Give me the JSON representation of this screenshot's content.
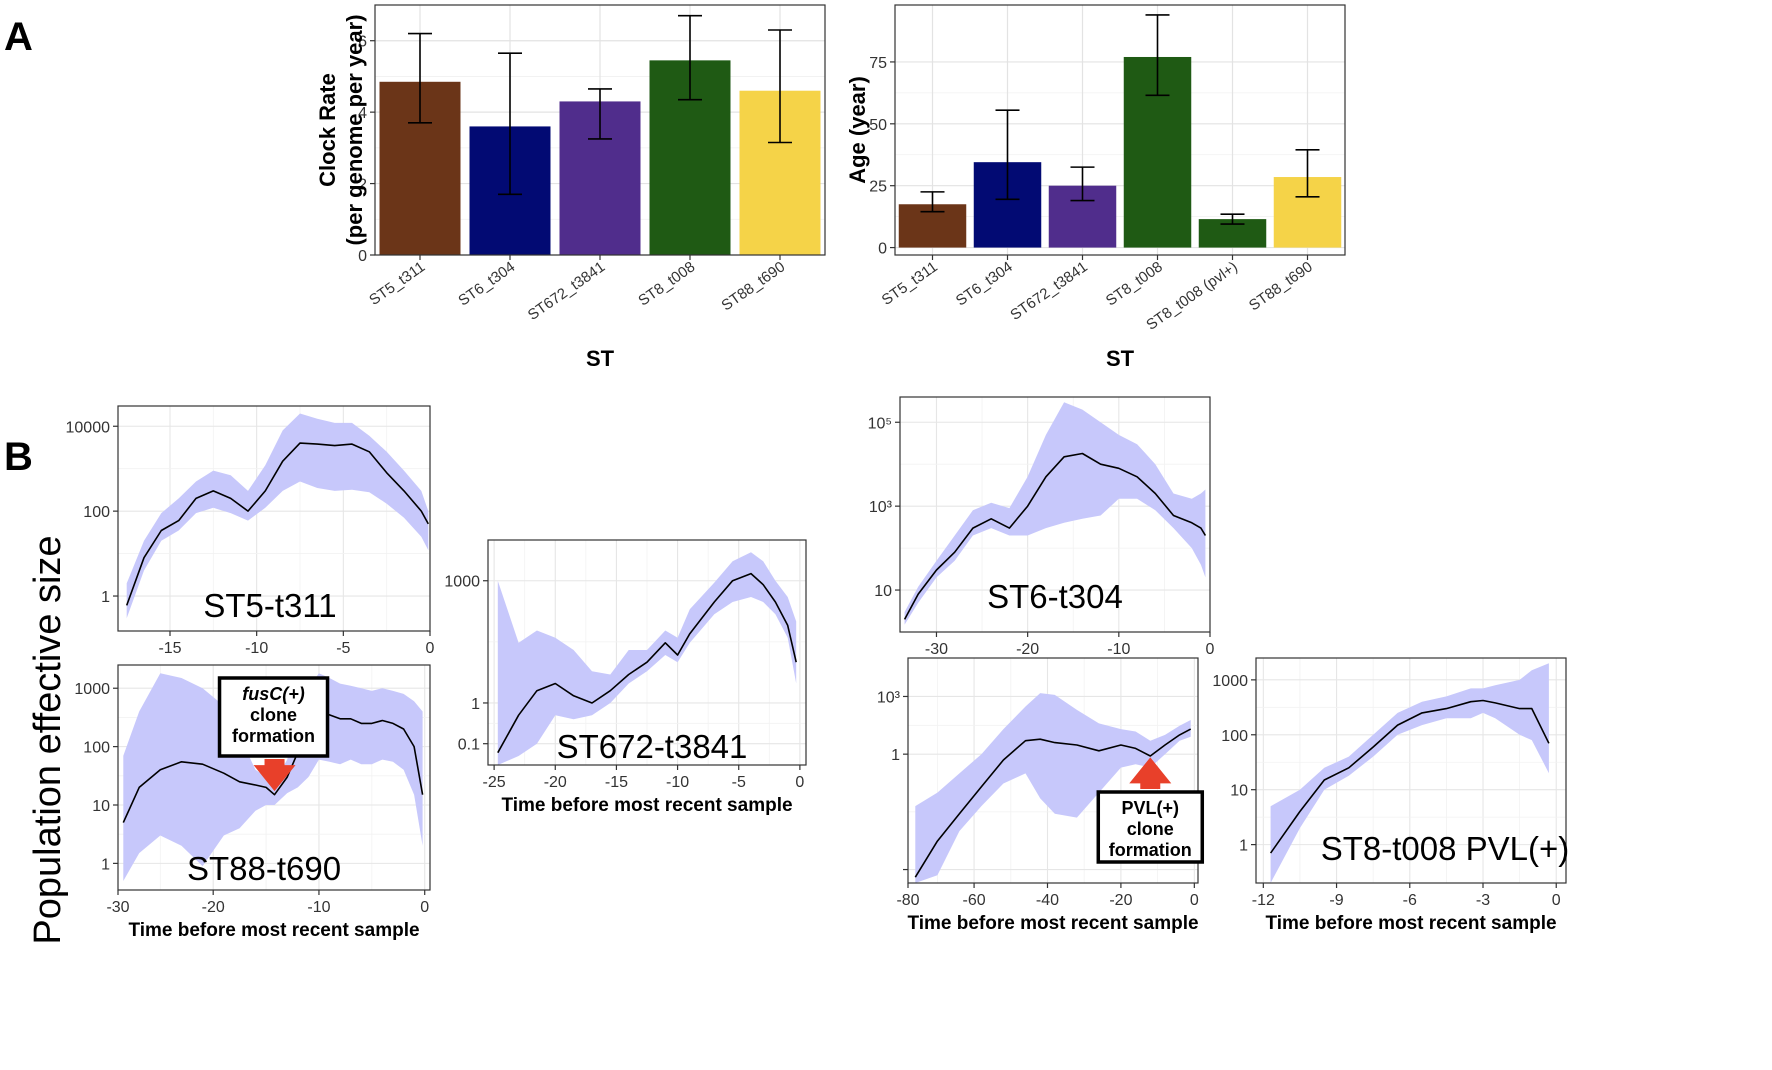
{
  "panels": {
    "a": "A",
    "b": "B"
  },
  "shared_ylabel": "Population effective size",
  "chart_data": [
    {
      "id": "clock",
      "type": "bar",
      "categories": [
        "ST5_t311",
        "ST6_t304",
        "ST672_t3841",
        "ST8_t008",
        "ST88_t690"
      ],
      "values": [
        4.85,
        3.6,
        4.3,
        5.45,
        4.6
      ],
      "err_low": [
        3.7,
        1.7,
        3.25,
        4.35,
        3.15
      ],
      "err_high": [
        6.2,
        5.65,
        4.65,
        6.7,
        6.3
      ],
      "colors": [
        "#6B3518",
        "#020A73",
        "#502D8C",
        "#1F5A14",
        "#F5D348"
      ],
      "ylabel_lines": [
        "Clock Rate",
        "(per genome per year)"
      ],
      "xlabel": "ST",
      "ylim": [
        0,
        7
      ],
      "yticks": [
        0,
        2,
        4,
        6
      ],
      "grid": true
    },
    {
      "id": "age",
      "type": "bar",
      "categories": [
        "ST5_t311",
        "ST6_t304",
        "ST672_t3841",
        "ST8_t008",
        "ST8_t008 (pvl+)",
        "ST88_t690"
      ],
      "values": [
        17.5,
        34.5,
        25,
        77,
        11.5,
        28.5
      ],
      "err_low": [
        14.5,
        19.5,
        19,
        61.5,
        9.5,
        20.5
      ],
      "err_high": [
        22.5,
        55.5,
        32.5,
        94,
        13.5,
        39.5
      ],
      "colors": [
        "#6B3518",
        "#020A73",
        "#502D8C",
        "#1F5A14",
        "#1F5A14",
        "#F5D348"
      ],
      "ylabel_lines": [
        "Age (year)"
      ],
      "xlabel": "ST",
      "ylim": [
        -3,
        98
      ],
      "yticks": [
        0,
        25,
        50,
        75
      ],
      "grid": true
    },
    {
      "id": "st5",
      "type": "area",
      "title": "ST5-t311",
      "xlabel": "",
      "ylabel": "",
      "log_y": true,
      "xlim": [
        -18,
        0
      ],
      "xticks": [
        -15,
        -10,
        -5,
        0
      ],
      "xtick_labels": [
        "-15",
        "-10",
        "-5",
        "0"
      ],
      "ylim": [
        0.15,
        30000
      ],
      "yticks": [
        1,
        100,
        10000
      ],
      "ytick_labels": [
        "1",
        "100",
        "10000"
      ],
      "x": [
        -17.5,
        -16.5,
        -15.5,
        -14.5,
        -13.5,
        -12.5,
        -11.5,
        -10.5,
        -9.5,
        -8.5,
        -7.5,
        -6.5,
        -5.5,
        -4.5,
        -3.5,
        -2.5,
        -1.5,
        -0.5,
        -0.1
      ],
      "y": [
        0.6,
        8,
        35,
        60,
        200,
        300,
        200,
        100,
        300,
        1500,
        4000,
        3800,
        3500,
        3800,
        2500,
        800,
        300,
        100,
        50
      ],
      "lower": [
        0.3,
        4,
        20,
        35,
        90,
        120,
        90,
        60,
        120,
        300,
        500,
        350,
        300,
        320,
        280,
        150,
        70,
        25,
        12
      ],
      "upper": [
        2,
        20,
        90,
        200,
        500,
        900,
        700,
        300,
        1200,
        8000,
        20000,
        15000,
        12000,
        12000,
        6000,
        2500,
        900,
        300,
        100
      ],
      "grid": true
    },
    {
      "id": "st88",
      "type": "area",
      "title": "ST88-t690",
      "xlabel": "Time before most recent sample",
      "ylabel": "",
      "log_y": true,
      "xlim": [
        -29,
        0.5
      ],
      "xticks": [
        -30,
        -20,
        -10,
        0
      ],
      "xtick_labels": [
        "-30",
        "-20",
        "-10",
        "0"
      ],
      "ylim": [
        0.35,
        2500
      ],
      "yticks": [
        1,
        10,
        100,
        1000
      ],
      "ytick_labels": [
        "1",
        "10",
        "100",
        "1000"
      ],
      "x": [
        -28.5,
        -27,
        -25,
        -23,
        -21,
        -19,
        -17.5,
        -16,
        -15,
        -14.2,
        -13,
        -12,
        -11,
        -10,
        -9,
        -8,
        -7,
        -6,
        -5,
        -4,
        -3,
        -2,
        -1,
        -0.2
      ],
      "y": [
        5,
        20,
        40,
        55,
        50,
        35,
        25,
        22,
        20,
        15,
        30,
        80,
        200,
        400,
        350,
        300,
        300,
        250,
        250,
        280,
        250,
        200,
        100,
        15
      ],
      "lower": [
        0.5,
        1.5,
        3,
        2,
        0.9,
        3,
        4,
        8,
        10,
        10,
        16,
        20,
        30,
        60,
        55,
        50,
        60,
        50,
        50,
        60,
        55,
        40,
        15,
        2
      ],
      "upper": [
        70,
        400,
        1800,
        1500,
        1000,
        500,
        150,
        40,
        30,
        25,
        60,
        300,
        1000,
        1800,
        1500,
        1200,
        1100,
        1000,
        900,
        1000,
        900,
        800,
        600,
        400
      ],
      "annotation": {
        "lines": [
          "fusC(+)",
          "clone",
          "formation"
        ],
        "x": -14.2
      },
      "grid": true
    },
    {
      "id": "st672",
      "type": "area",
      "title": "ST672-t3841",
      "xlabel": "Time before most recent sample",
      "ylabel": "",
      "log_y": true,
      "xlim": [
        -25.5,
        0.5
      ],
      "xticks": [
        -25,
        -20,
        -15,
        -10,
        -5,
        0
      ],
      "xtick_labels": [
        "-25",
        "-20",
        "-15",
        "-10",
        "-5",
        "0"
      ],
      "ylim": [
        0.03,
        10000
      ],
      "yticks": [
        0.1,
        1,
        1000
      ],
      "ytick_labels": [
        "0.1",
        "1",
        "1000"
      ],
      "x": [
        -24.7,
        -23,
        -21.5,
        -20,
        -18.5,
        -17,
        -15.5,
        -14,
        -12.5,
        -11,
        -10,
        -9,
        -7,
        -5.5,
        -4,
        -3,
        -2,
        -1,
        -0.3
      ],
      "y": [
        0.06,
        0.5,
        2,
        3,
        1.5,
        1,
        2,
        5,
        10,
        30,
        15,
        50,
        300,
        1000,
        1500,
        800,
        300,
        80,
        10
      ],
      "lower": [
        0.03,
        0.05,
        0.1,
        0.5,
        0.4,
        0.5,
        1,
        3,
        6,
        15,
        10,
        30,
        150,
        300,
        400,
        300,
        150,
        40,
        3
      ],
      "upper": [
        1000,
        30,
        60,
        40,
        20,
        6,
        5,
        20,
        20,
        60,
        40,
        200,
        900,
        3000,
        5000,
        3000,
        1000,
        400,
        100
      ],
      "grid": true
    },
    {
      "id": "st6",
      "type": "area",
      "title": "ST6-t304",
      "xlabel": "",
      "ylabel": "",
      "log_y": true,
      "xlim": [
        -34,
        0
      ],
      "xticks": [
        -30,
        -20,
        -10,
        0
      ],
      "xtick_labels": [
        "-30",
        "-20",
        "-10",
        "0"
      ],
      "ylim": [
        1,
        400000
      ],
      "yticks": [
        10,
        1000,
        100000
      ],
      "ytick_labels": [
        "10",
        "10³",
        "10⁵"
      ],
      "x": [
        -33.5,
        -32,
        -30,
        -28,
        -26,
        -24,
        -22,
        -20,
        -18,
        -16,
        -14,
        -12,
        -10,
        -8,
        -6,
        -4,
        -2,
        -1,
        -0.5
      ],
      "y": [
        2,
        8,
        30,
        80,
        300,
        500,
        300,
        1000,
        5000,
        15000,
        18000,
        10000,
        8000,
        5000,
        2000,
        600,
        400,
        300,
        200
      ],
      "lower": [
        1.5,
        5,
        20,
        50,
        200,
        300,
        200,
        200,
        300,
        400,
        500,
        600,
        1500,
        1500,
        800,
        300,
        100,
        40,
        20
      ],
      "upper": [
        3,
        12,
        50,
        200,
        800,
        1200,
        900,
        5000,
        50000,
        300000,
        200000,
        100000,
        50000,
        30000,
        10000,
        2000,
        1500,
        2000,
        2500
      ],
      "grid": true
    },
    {
      "id": "st8",
      "type": "area",
      "title": "",
      "xlabel": "Time before most recent sample",
      "ylabel": "",
      "log_y": true,
      "xlim": [
        -78,
        1
      ],
      "xticks": [
        -80,
        -60,
        -40,
        -20,
        0
      ],
      "xtick_labels": [
        "-80",
        "-60",
        "-40",
        "-20",
        "0"
      ],
      "ylim": [
        2e-07,
        100000
      ],
      "yticks": [
        1e-06,
        1,
        1000
      ],
      "ytick_labels": [
        "",
        "1",
        "10³"
      ],
      "x": [
        -76,
        -70,
        -64,
        -58,
        -52,
        -46,
        -42,
        -38,
        -32,
        -26,
        -20,
        -16,
        -12,
        -8,
        -4,
        -1
      ],
      "y": [
        4e-07,
        3e-05,
        0.0008,
        0.02,
        0.5,
        5,
        6,
        4,
        3,
        1.5,
        3,
        2,
        0.8,
        3,
        10,
        20
      ],
      "lower": [
        1e-07,
        5e-07,
        0.0001,
        0.002,
        0.03,
        0.1,
        0.005,
        0.0008,
        0.0005,
        0.01,
        0.2,
        0.3,
        0.2,
        1,
        5,
        8
      ],
      "upper": [
        0.002,
        0.01,
        0.1,
        1,
        20,
        300,
        1500,
        1200,
        200,
        40,
        20,
        15,
        5,
        10,
        30,
        60
      ],
      "annotation": {
        "lines": [
          "PVL(+)",
          "clone",
          "formation"
        ],
        "x": -12
      },
      "grid": true
    },
    {
      "id": "st8pvl",
      "type": "area",
      "title": "ST8-t008 PVL(+)",
      "xlabel": "Time before most recent sample",
      "ylabel": "",
      "log_y": true,
      "xlim": [
        -12.3,
        0.4
      ],
      "xticks": [
        -12,
        -9,
        -6,
        -3,
        0
      ],
      "xtick_labels": [
        "-12",
        "-9",
        "-6",
        "-3",
        "0"
      ],
      "ylim": [
        0.2,
        2500
      ],
      "yticks": [
        1,
        10,
        100,
        1000
      ],
      "ytick_labels": [
        "1",
        "10",
        "100",
        "1000"
      ],
      "x": [
        -11.7,
        -10.5,
        -9.5,
        -8.5,
        -7.5,
        -6.5,
        -5.5,
        -4.5,
        -3.5,
        -3,
        -2.5,
        -1.5,
        -1,
        -0.3
      ],
      "y": [
        0.7,
        4,
        15,
        25,
        60,
        150,
        250,
        300,
        400,
        420,
        380,
        300,
        300,
        70
      ],
      "lower": [
        0.2,
        2,
        10,
        18,
        40,
        100,
        150,
        200,
        200,
        250,
        200,
        100,
        80,
        20
      ],
      "upper": [
        5,
        10,
        25,
        40,
        100,
        250,
        400,
        500,
        700,
        700,
        800,
        1000,
        1500,
        2000
      ],
      "grid": true
    }
  ]
}
